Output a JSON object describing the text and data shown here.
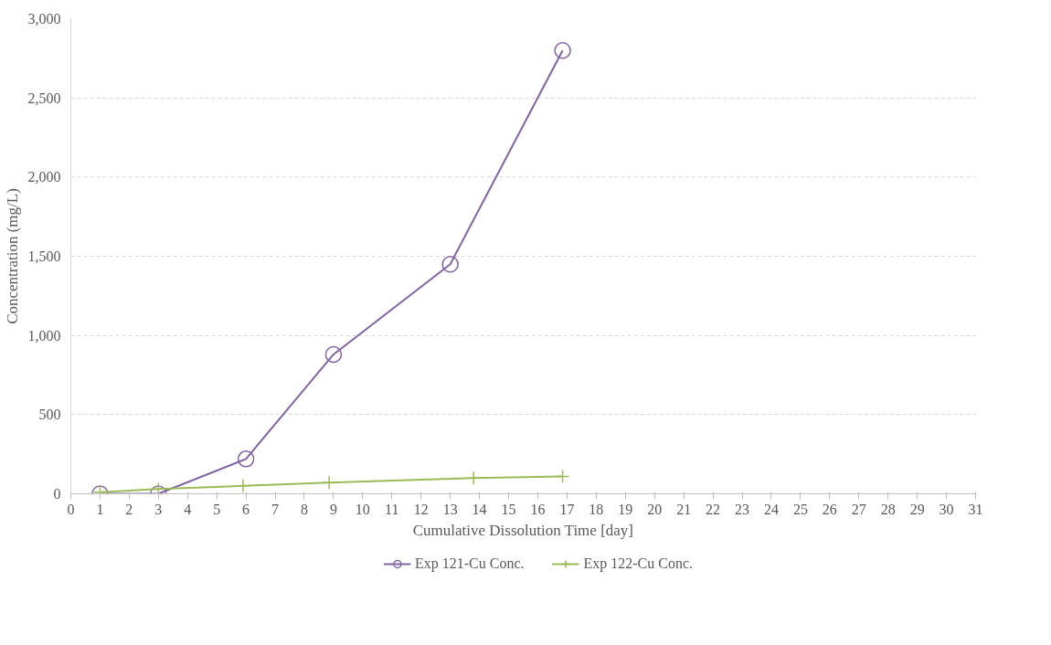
{
  "chart_data": {
    "type": "line",
    "xlabel": "Cumulative Dissolution Time [day]",
    "ylabel": "Concentration (mg/L)",
    "xlim": [
      0,
      31
    ],
    "xticks": [
      0,
      1,
      2,
      3,
      4,
      5,
      6,
      7,
      8,
      9,
      10,
      11,
      12,
      13,
      14,
      15,
      16,
      17,
      18,
      19,
      20,
      21,
      22,
      23,
      24,
      25,
      26,
      27,
      28,
      29,
      30,
      31
    ],
    "ylim": [
      0,
      3000
    ],
    "yticks": [
      0,
      500,
      {
        "value": 1000,
        "label": "1,000"
      },
      {
        "value": 1500,
        "label": "1,500"
      },
      {
        "value": 2000,
        "label": "2,000"
      },
      {
        "value": 2500,
        "label": "2,500"
      },
      {
        "value": 3000,
        "label": "3,000"
      }
    ],
    "grid": "y",
    "legend": "bottom",
    "line_style": "solid",
    "series": [
      {
        "name": "Exp 121-Cu Conc.",
        "color": "#8064a2",
        "marker": "circle",
        "x": [
          1,
          3,
          6,
          9,
          13,
          16.85
        ],
        "values": [
          0,
          0,
          220,
          880,
          1450,
          2800
        ]
      },
      {
        "name": "Exp 122-Cu Conc.",
        "color": "#9bbb59",
        "marker": "cross",
        "x": [
          1,
          3,
          5.9,
          8.85,
          13.8,
          16.85
        ],
        "values": [
          10,
          30,
          50,
          70,
          100,
          110
        ]
      }
    ]
  }
}
